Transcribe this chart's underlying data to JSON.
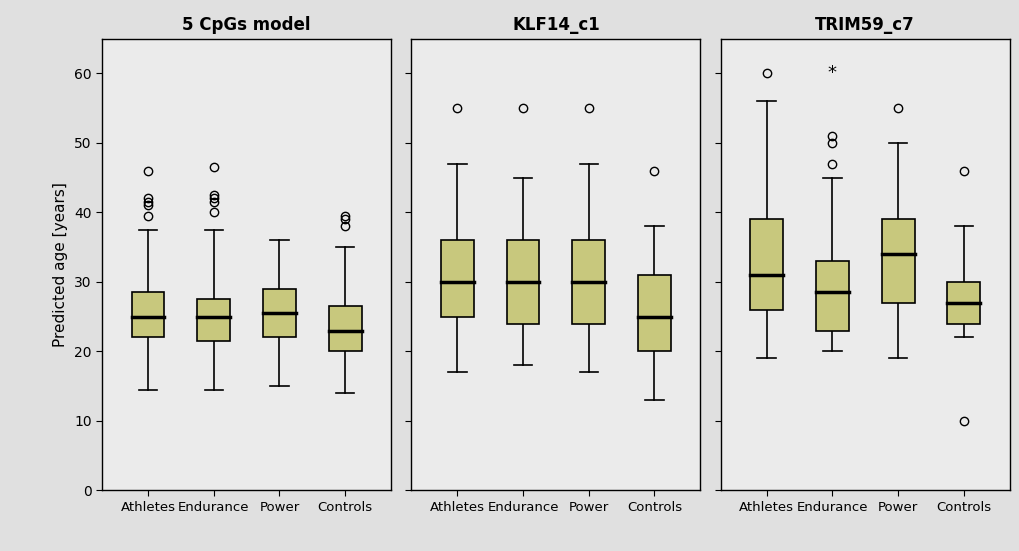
{
  "titles": [
    "5 CpGs model",
    "KLF14_c1",
    "TRIM59_c7"
  ],
  "categories": [
    "Athletes",
    "Endurance",
    "Power",
    "Controls"
  ],
  "ylabel": "Predicted age [years]",
  "ylim": [
    0,
    65
  ],
  "yticks": [
    0,
    10,
    20,
    30,
    40,
    50,
    60
  ],
  "box_facecolor": "#c8c87d",
  "box_edgecolor": "#000000",
  "outer_bg": "#e0e0e0",
  "panel_bg": "#ebebeb",
  "median_color": "#000000",
  "whisker_color": "#000000",
  "flier_edgecolor": "#000000",
  "panels": [
    {
      "title": "5 CpGs model",
      "groups": [
        {
          "name": "Athletes",
          "q1": 22.0,
          "median": 25.0,
          "q3": 28.5,
          "whislo": 14.5,
          "whishi": 37.5,
          "fliers": [
            39.5,
            41.0,
            41.5,
            42.0,
            46.0
          ],
          "star_fliers": []
        },
        {
          "name": "Endurance",
          "q1": 21.5,
          "median": 25.0,
          "q3": 27.5,
          "whislo": 14.5,
          "whishi": 37.5,
          "fliers": [
            40.0,
            41.5,
            42.0,
            42.5,
            46.5
          ],
          "star_fliers": []
        },
        {
          "name": "Power",
          "q1": 22.0,
          "median": 25.5,
          "q3": 29.0,
          "whislo": 15.0,
          "whishi": 36.0,
          "fliers": [],
          "star_fliers": []
        },
        {
          "name": "Controls",
          "q1": 20.0,
          "median": 23.0,
          "q3": 26.5,
          "whislo": 14.0,
          "whishi": 35.0,
          "fliers": [
            38.0,
            39.0,
            39.5
          ],
          "star_fliers": []
        }
      ]
    },
    {
      "title": "KLF14_c1",
      "groups": [
        {
          "name": "Athletes",
          "q1": 25.0,
          "median": 30.0,
          "q3": 36.0,
          "whislo": 17.0,
          "whishi": 47.0,
          "fliers": [
            55.0
          ],
          "star_fliers": []
        },
        {
          "name": "Endurance",
          "q1": 24.0,
          "median": 30.0,
          "q3": 36.0,
          "whislo": 18.0,
          "whishi": 45.0,
          "fliers": [
            55.0
          ],
          "star_fliers": []
        },
        {
          "name": "Power",
          "q1": 24.0,
          "median": 30.0,
          "q3": 36.0,
          "whislo": 17.0,
          "whishi": 47.0,
          "fliers": [
            55.0
          ],
          "star_fliers": []
        },
        {
          "name": "Controls",
          "q1": 20.0,
          "median": 25.0,
          "q3": 31.0,
          "whislo": 13.0,
          "whishi": 38.0,
          "fliers": [
            46.0
          ],
          "star_fliers": []
        }
      ]
    },
    {
      "title": "TRIM59_c7",
      "groups": [
        {
          "name": "Athletes",
          "q1": 26.0,
          "median": 31.0,
          "q3": 39.0,
          "whislo": 19.0,
          "whishi": 56.0,
          "fliers": [
            60.0
          ],
          "star_fliers": []
        },
        {
          "name": "Endurance",
          "q1": 23.0,
          "median": 28.5,
          "q3": 33.0,
          "whislo": 20.0,
          "whishi": 45.0,
          "fliers": [
            47.0,
            50.0,
            51.0
          ],
          "star_fliers": [
            60.0
          ]
        },
        {
          "name": "Power",
          "q1": 27.0,
          "median": 34.0,
          "q3": 39.0,
          "whislo": 19.0,
          "whishi": 50.0,
          "fliers": [
            55.0
          ],
          "star_fliers": []
        },
        {
          "name": "Controls",
          "q1": 24.0,
          "median": 27.0,
          "q3": 30.0,
          "whislo": 22.0,
          "whishi": 38.0,
          "fliers": [
            10.0,
            46.0
          ],
          "star_fliers": []
        }
      ]
    }
  ]
}
